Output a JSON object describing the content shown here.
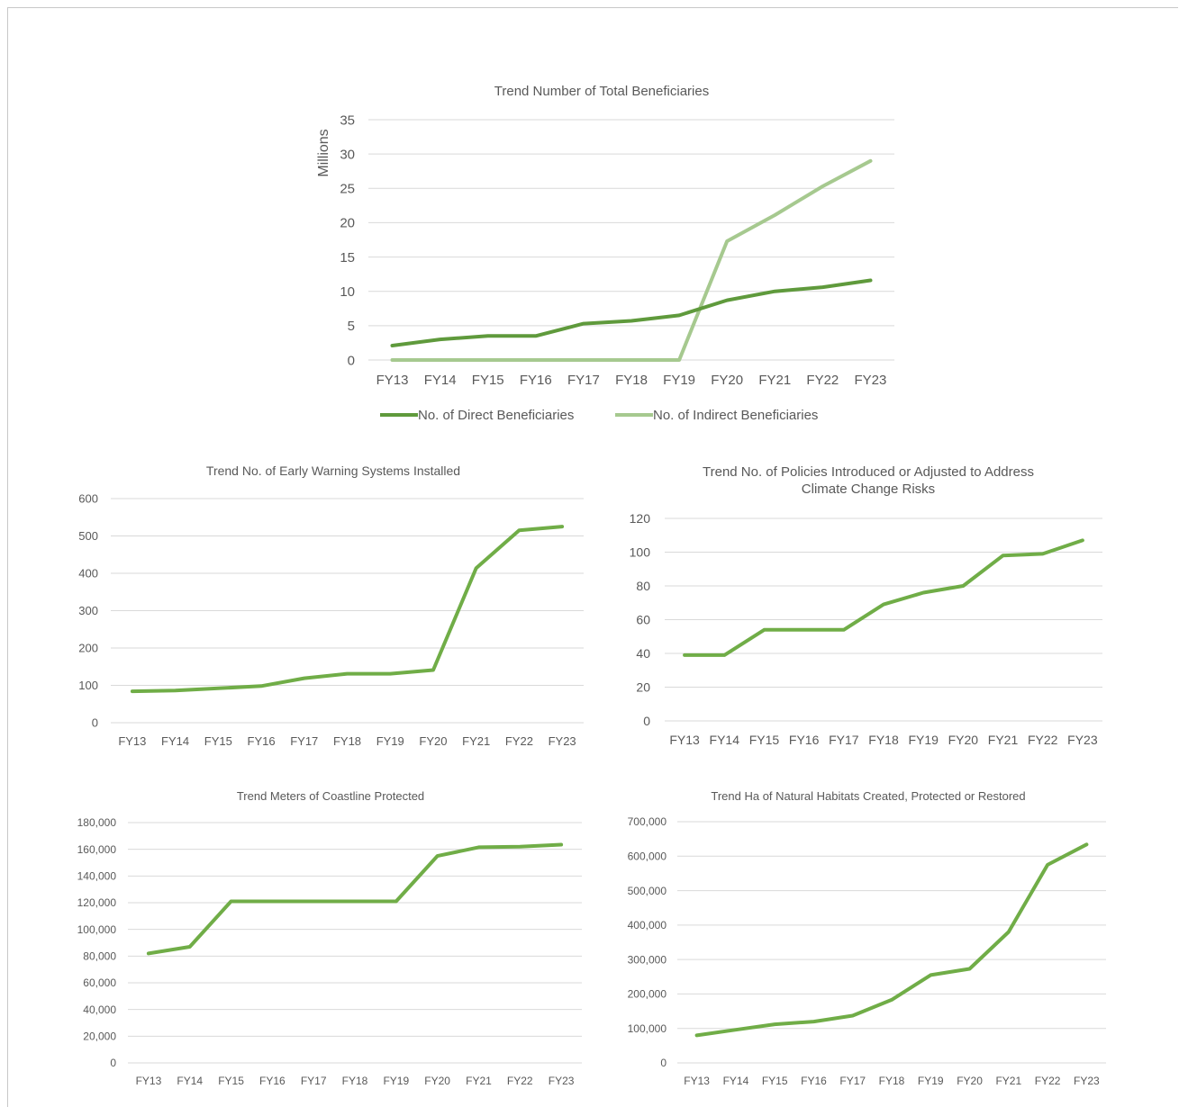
{
  "chart_data": [
    {
      "id": "beneficiaries",
      "type": "line",
      "title": "Trend Number of Total Beneficiaries",
      "ylabel": "Millions",
      "xlabel": "",
      "categories": [
        "FY13",
        "FY14",
        "FY15",
        "FY16",
        "FY17",
        "FY18",
        "FY19",
        "FY20",
        "FY21",
        "FY22",
        "FY23"
      ],
      "ylim": [
        0,
        35
      ],
      "yticks": [
        "0",
        "5",
        "10",
        "15",
        "20",
        "25",
        "30",
        "35"
      ],
      "grid": true,
      "legend": "bottom",
      "series": [
        {
          "name": "No. of Direct Beneficiaries",
          "color": "#5f9a3c",
          "values": [
            2.1,
            3.0,
            3.5,
            3.5,
            5.3,
            5.7,
            6.5,
            8.7,
            10.0,
            10.6,
            11.6
          ]
        },
        {
          "name": "No. of Indirect Beneficiaries",
          "color": "#a6c98f",
          "values": [
            0,
            0,
            0,
            0,
            0,
            0,
            0,
            17.3,
            21.1,
            25.3,
            29.0
          ]
        }
      ]
    },
    {
      "id": "ews",
      "type": "line",
      "title": "Trend No. of Early Warning Systems Installed",
      "categories": [
        "FY13",
        "FY14",
        "FY15",
        "FY16",
        "FY17",
        "FY18",
        "FY19",
        "FY20",
        "FY21",
        "FY22",
        "FY23"
      ],
      "ylim": [
        0,
        600
      ],
      "yticks": [
        "0",
        "100",
        "200",
        "300",
        "400",
        "500",
        "600"
      ],
      "grid": true,
      "series": [
        {
          "color": "#70ad47",
          "values": [
            84,
            86,
            92,
            98,
            119,
            131,
            131,
            141,
            414,
            515,
            525
          ]
        }
      ]
    },
    {
      "id": "policies",
      "type": "line",
      "title": [
        "Trend No. of Policies Introduced or Adjusted to Address",
        "Climate Change Risks"
      ],
      "categories": [
        "FY13",
        "FY14",
        "FY15",
        "FY16",
        "FY17",
        "FY18",
        "FY19",
        "FY20",
        "FY21",
        "FY22",
        "FY23"
      ],
      "ylim": [
        0,
        120
      ],
      "yticks": [
        "0",
        "20",
        "40",
        "60",
        "80",
        "100",
        "120"
      ],
      "grid": true,
      "series": [
        {
          "color": "#70ad47",
          "values": [
            39,
            39,
            54,
            54,
            54,
            69,
            76,
            80,
            98,
            99,
            107
          ]
        }
      ]
    },
    {
      "id": "coastline",
      "type": "line",
      "title": "Trend Meters of Coastline Protected",
      "categories": [
        "FY13",
        "FY14",
        "FY15",
        "FY16",
        "FY17",
        "FY18",
        "FY19",
        "FY20",
        "FY21",
        "FY22",
        "FY23"
      ],
      "ylim": [
        0,
        180000
      ],
      "yticks": [
        "0",
        "20,000",
        "40,000",
        "60,000",
        "80,000",
        "100,000",
        "120,000",
        "140,000",
        "160,000",
        "180,000"
      ],
      "grid": true,
      "series": [
        {
          "color": "#70ad47",
          "values": [
            82000,
            87000,
            121000,
            121000,
            121000,
            121000,
            121000,
            155000,
            161500,
            162000,
            163500
          ]
        }
      ]
    },
    {
      "id": "habitats",
      "type": "line",
      "title": "Trend Ha of Natural Habitats Created, Protected or Restored",
      "categories": [
        "FY13",
        "FY14",
        "FY15",
        "FY16",
        "FY17",
        "FY18",
        "FY19",
        "FY20",
        "FY21",
        "FY22",
        "FY23"
      ],
      "ylim": [
        0,
        700000
      ],
      "yticks": [
        "0",
        "100,000",
        "200,000",
        "300,000",
        "400,000",
        "500,000",
        "600,000",
        "700,000"
      ],
      "grid": true,
      "series": [
        {
          "color": "#70ad47",
          "values": [
            80000,
            96000,
            112000,
            120000,
            137000,
            183000,
            255000,
            273000,
            380000,
            575000,
            634000
          ]
        }
      ]
    }
  ]
}
